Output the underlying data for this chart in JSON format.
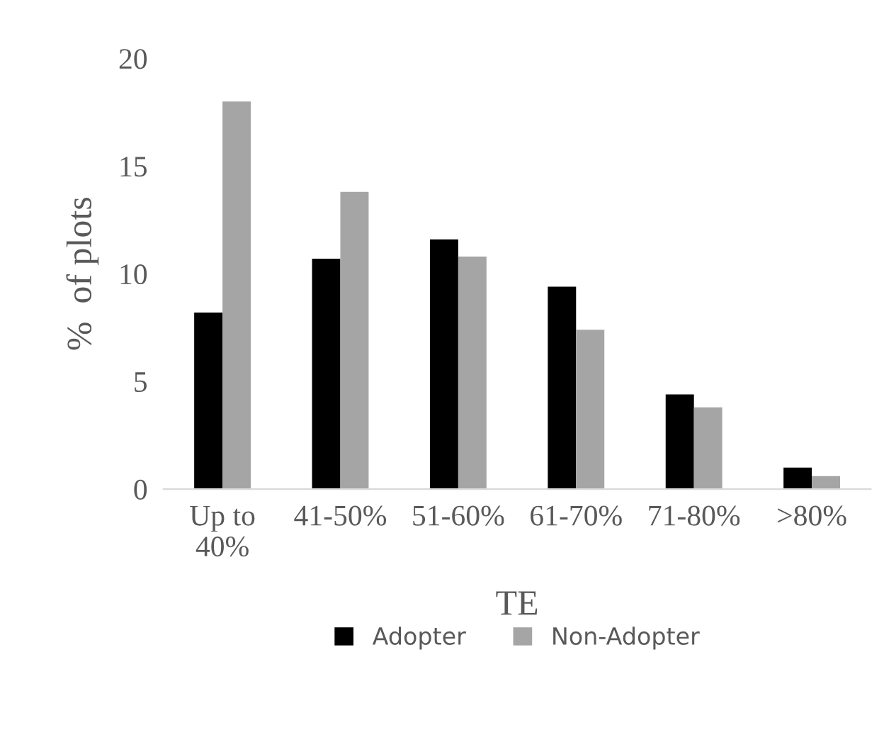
{
  "chart_data": {
    "type": "bar",
    "xlabel": "TE",
    "ylabel": "%  of plots",
    "categories": [
      "Up to\n40%",
      "41-50%",
      "51-60%",
      "61-70%",
      "71-80%",
      ">80%"
    ],
    "series": [
      {
        "name": "Adopter",
        "color": "#000000",
        "values": [
          8.2,
          10.7,
          11.6,
          9.4,
          4.4,
          1.0
        ]
      },
      {
        "name": "Non-Adopter",
        "color": "#a5a5a5",
        "values": [
          18.0,
          13.8,
          10.8,
          7.4,
          3.8,
          0.6
        ]
      }
    ],
    "ylim": [
      0,
      20
    ],
    "yticks": [
      0,
      5,
      10,
      15,
      20
    ],
    "grid": false,
    "legend": "bottom"
  }
}
